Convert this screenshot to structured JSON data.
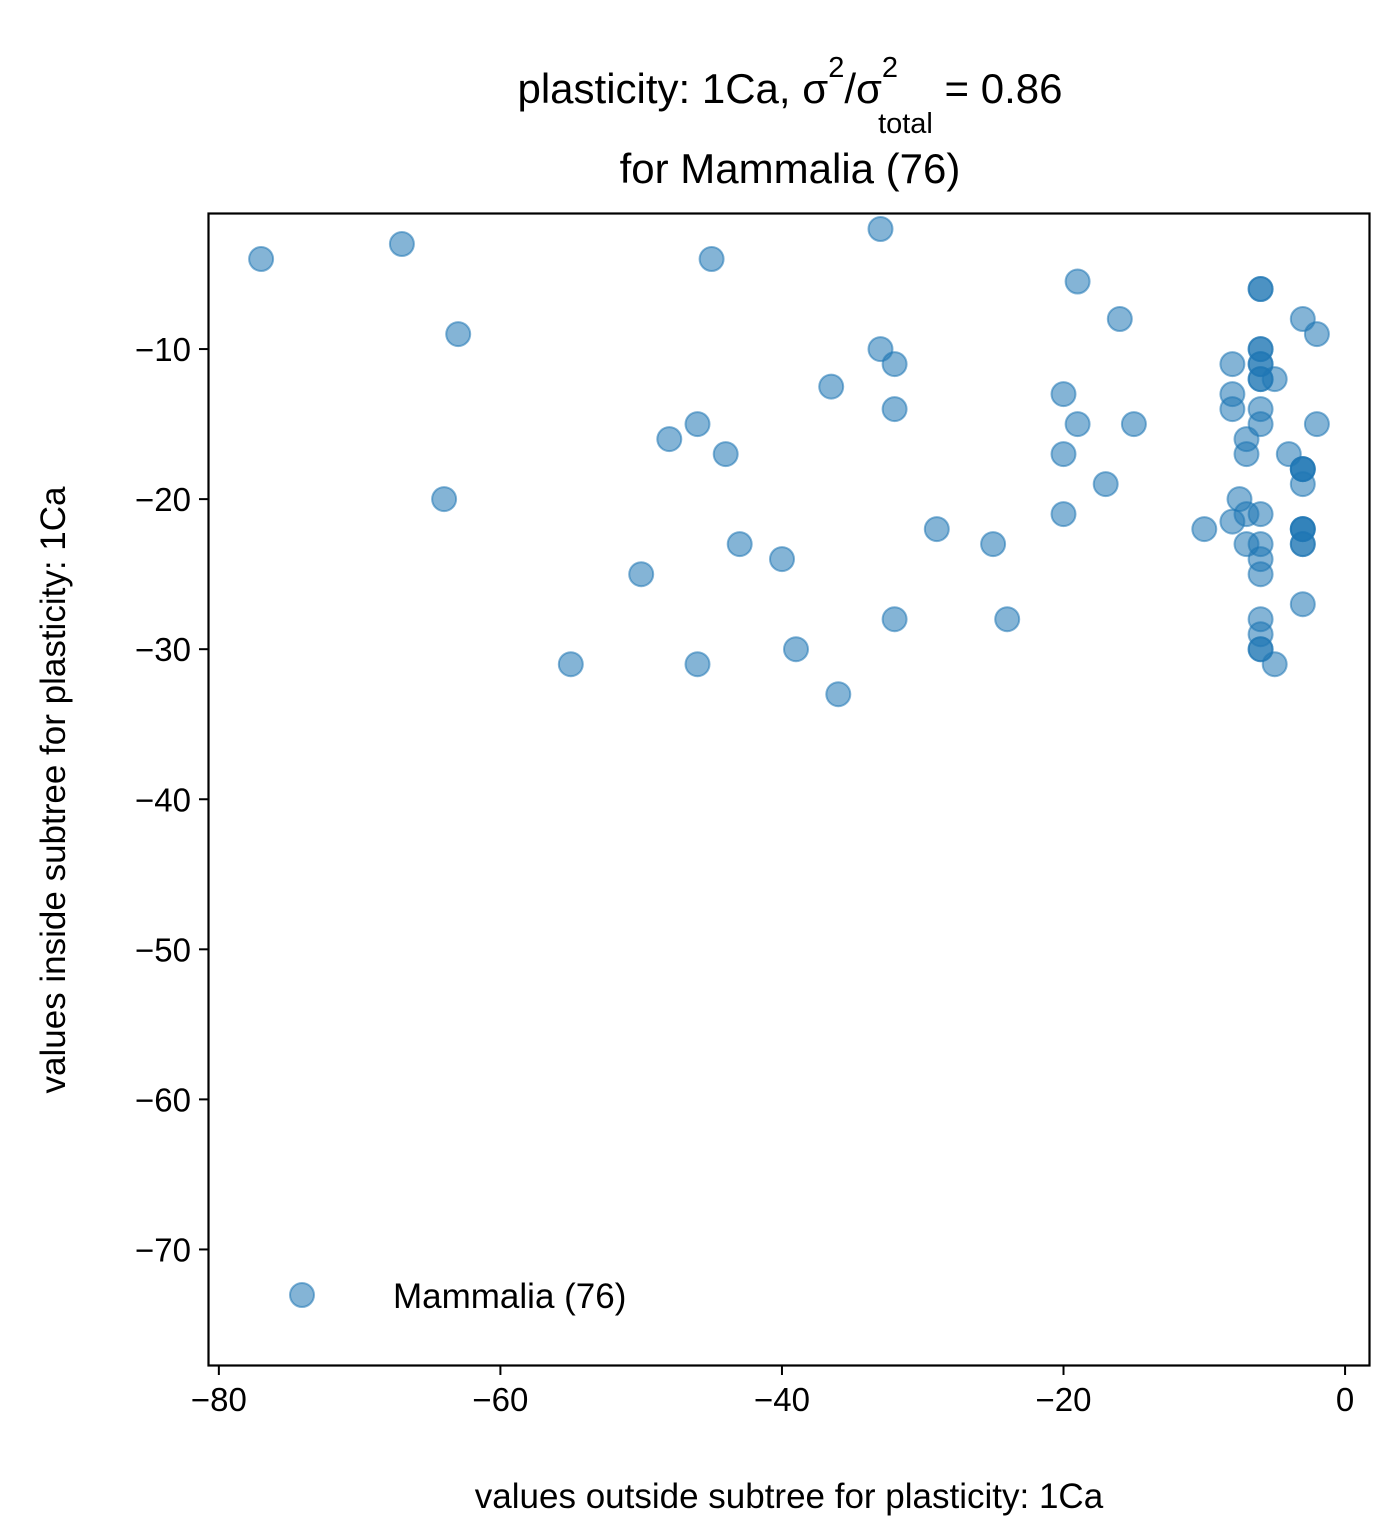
{
  "chart_data": {
    "type": "scatter",
    "title": {
      "line1_prefix": "plasticity: 1Ca, σ",
      "sup1": "2",
      "slash": "/σ",
      "sup2": "2",
      "sub": "total",
      "line1_suffix": " =  0.86",
      "line2": "for Mammalia (76)"
    },
    "xlabel": "values outside subtree for plasticity: 1Ca",
    "ylabel": "values inside subtree for plasticity: 1Ca",
    "xlim": [
      -80.7,
      1.7
    ],
    "ylim": [
      -77.7,
      -1.0
    ],
    "x_ticks": [
      -80,
      -60,
      -40,
      -20,
      0
    ],
    "x_tick_labels": [
      "−80",
      "−60",
      "−40",
      "−20",
      "0"
    ],
    "y_ticks": [
      -10,
      -20,
      -30,
      -40,
      -50,
      -60,
      -70
    ],
    "y_tick_labels": [
      "−10",
      "−20",
      "−30",
      "−40",
      "−50",
      "−60",
      "−70"
    ],
    "grid": false,
    "legend": {
      "position": "lower-left",
      "label": "Mammalia (76)"
    },
    "series": [
      {
        "name": "Mammalia (76)",
        "color": "#1f77b4",
        "alpha": 0.55,
        "points": [
          [
            -77,
            -4
          ],
          [
            -67,
            -3
          ],
          [
            -63,
            -9
          ],
          [
            -64,
            -20
          ],
          [
            -55,
            -31
          ],
          [
            -50,
            -25
          ],
          [
            -48,
            -16
          ],
          [
            -46,
            -15
          ],
          [
            -46,
            -31
          ],
          [
            -45,
            -4
          ],
          [
            -44,
            -17
          ],
          [
            -43,
            -23
          ],
          [
            -40,
            -24
          ],
          [
            -39,
            -30
          ],
          [
            -36.5,
            -12.5
          ],
          [
            -36,
            -33
          ],
          [
            -33,
            -2
          ],
          [
            -33,
            -10
          ],
          [
            -32,
            -11
          ],
          [
            -32,
            -14
          ],
          [
            -32,
            -28
          ],
          [
            -29,
            -22
          ],
          [
            -25,
            -23
          ],
          [
            -24,
            -28
          ],
          [
            -20,
            -13
          ],
          [
            -20,
            -17
          ],
          [
            -20,
            -21
          ],
          [
            -19,
            -5.5
          ],
          [
            -19,
            -15
          ],
          [
            -17,
            -19
          ],
          [
            -16,
            -8
          ],
          [
            -15,
            -15
          ],
          [
            -10,
            -22
          ],
          [
            -8,
            -11
          ],
          [
            -8,
            -13
          ],
          [
            -8,
            -14
          ],
          [
            -8,
            -21.5
          ],
          [
            -7.5,
            -20
          ],
          [
            -7,
            -16
          ],
          [
            -7,
            -17
          ],
          [
            -7,
            -21
          ],
          [
            -7,
            -23
          ],
          [
            -6,
            -6
          ],
          [
            -6,
            -6
          ],
          [
            -6,
            -10
          ],
          [
            -6,
            -10
          ],
          [
            -6,
            -11
          ],
          [
            -6,
            -11
          ],
          [
            -6,
            -12
          ],
          [
            -6,
            -12
          ],
          [
            -6,
            -14
          ],
          [
            -6,
            -15
          ],
          [
            -6,
            -21
          ],
          [
            -6,
            -23
          ],
          [
            -6,
            -24
          ],
          [
            -6,
            -25
          ],
          [
            -6,
            -28
          ],
          [
            -6,
            -29
          ],
          [
            -6,
            -30
          ],
          [
            -6,
            -30
          ],
          [
            -5,
            -12
          ],
          [
            -5,
            -31
          ],
          [
            -4,
            -17
          ],
          [
            -3,
            -8
          ],
          [
            -3,
            -18
          ],
          [
            -3,
            -18
          ],
          [
            -3,
            -18
          ],
          [
            -3,
            -19
          ],
          [
            -3,
            -22
          ],
          [
            -3,
            -22
          ],
          [
            -3,
            -22
          ],
          [
            -3,
            -23
          ],
          [
            -3,
            -23
          ],
          [
            -3,
            -27
          ],
          [
            -2,
            -9
          ],
          [
            -2,
            -15
          ]
        ]
      }
    ]
  }
}
